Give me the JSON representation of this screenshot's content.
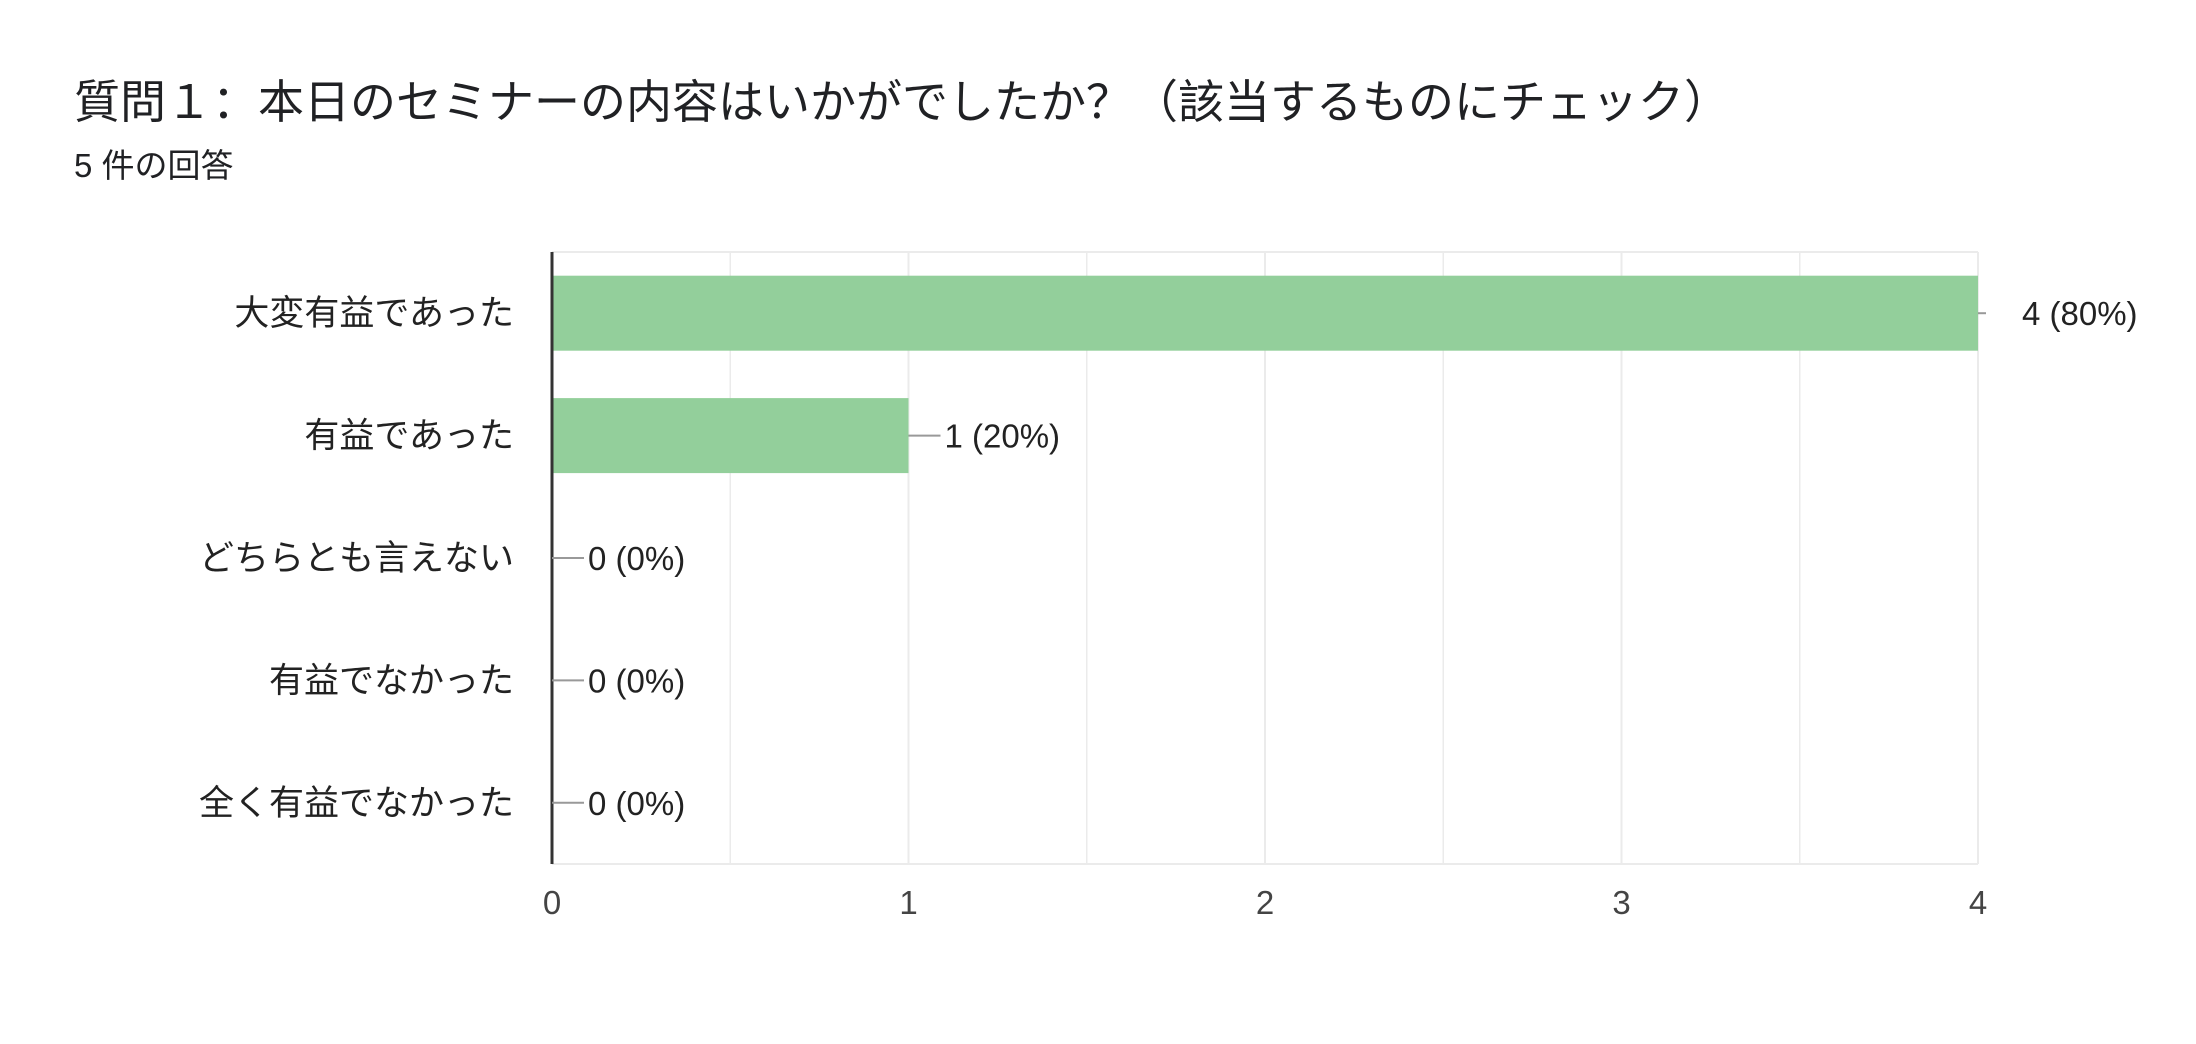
{
  "header": {
    "title": "質問１：本日のセミナーの内容はいかがでしたか？（該当するものにチェック）",
    "response_count": "5 件の回答"
  },
  "chart_data": {
    "type": "bar",
    "orientation": "horizontal",
    "categories": [
      "大変有益であった",
      "有益であった",
      "どちらとも言えない",
      "有益でなかった",
      "全く有益でなかった"
    ],
    "values": [
      4,
      1,
      0,
      0,
      0
    ],
    "value_labels": [
      "4 (80%)",
      "1 (20%)",
      "0 (0%)",
      "0 (0%)",
      "0 (0%)"
    ],
    "xlim": [
      0,
      4
    ],
    "xticks": [
      "0",
      "1",
      "2",
      "3",
      "4"
    ],
    "grid": true,
    "bar_color": "#93cf9b",
    "axis_color": "#333333",
    "grid_color": "#ebebeb",
    "leader_color": "#999999"
  }
}
